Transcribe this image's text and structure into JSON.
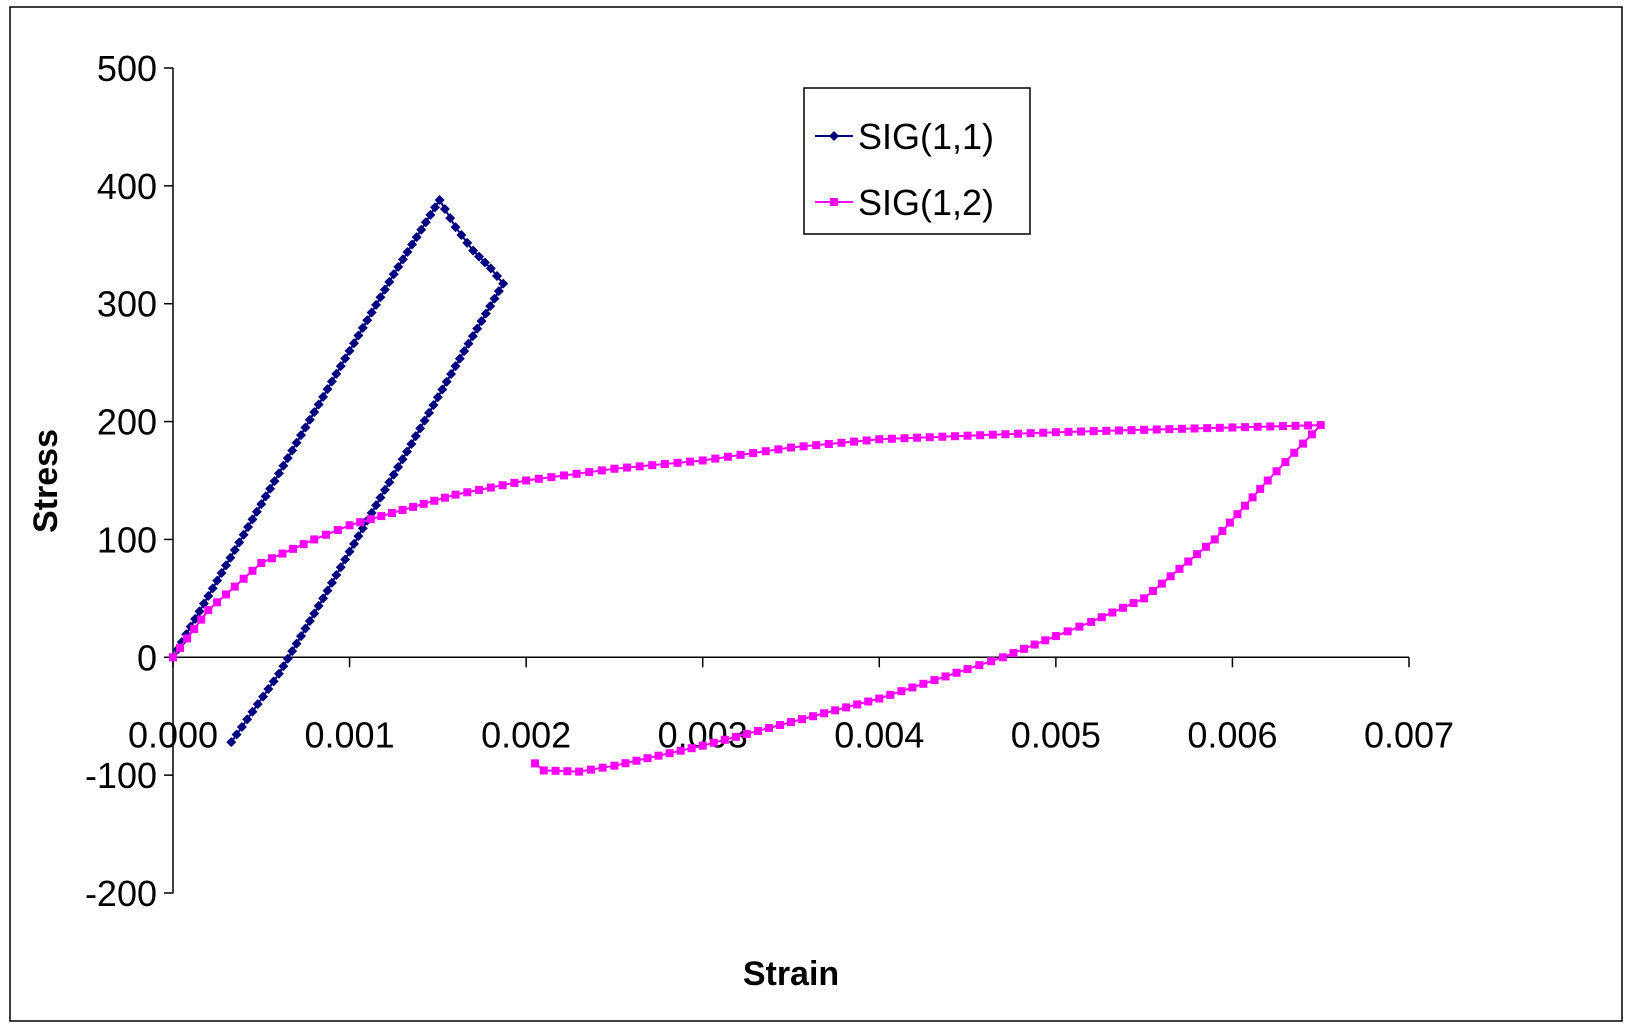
{
  "chart_data": {
    "type": "scatter",
    "xlabel": "Strain",
    "ylabel": "Stress",
    "xlim": [
      0,
      0.007
    ],
    "ylim": [
      -200,
      500
    ],
    "x_ticks": [
      "0.000",
      "0.001",
      "0.002",
      "0.003",
      "0.004",
      "0.005",
      "0.006",
      "0.007"
    ],
    "y_ticks": [
      "-200",
      "-100",
      "0",
      "100",
      "200",
      "300",
      "400",
      "500"
    ],
    "legend_position": "top-right",
    "grid": false,
    "series": [
      {
        "name": "SIG(1,1)",
        "color": "#000080",
        "marker": "diamond",
        "x": [
          0.0,
          0.00025,
          0.0005,
          0.00075,
          0.001,
          0.00125,
          0.00151,
          0.0016,
          0.0017,
          0.0018,
          0.00187,
          0.0016,
          0.00135,
          0.0011,
          0.00085,
          0.0006,
          0.00033
        ],
        "y": [
          0,
          65,
          130,
          195,
          260,
          325,
          388,
          365,
          345,
          330,
          317,
          247,
          181,
          116,
          50,
          -14,
          -72
        ]
      },
      {
        "name": "SIG(1,2)",
        "color": "#FF00FF",
        "marker": "square",
        "x": [
          0.0,
          0.0002,
          0.0005,
          0.0008,
          0.001,
          0.0013,
          0.0016,
          0.002,
          0.0025,
          0.003,
          0.0035,
          0.004,
          0.0045,
          0.005,
          0.0055,
          0.006,
          0.0065,
          0.0062,
          0.0059,
          0.0057,
          0.0055,
          0.0052,
          0.005,
          0.0047,
          0.0045,
          0.004,
          0.0035,
          0.003,
          0.0025,
          0.0023,
          0.0021,
          0.00205
        ],
        "y": [
          0,
          40,
          80,
          100,
          112,
          125,
          138,
          150,
          160,
          167,
          178,
          185,
          188,
          191,
          193,
          195,
          197,
          150,
          100,
          75,
          50,
          30,
          18,
          0,
          -10,
          -35,
          -55,
          -75,
          -92,
          -97,
          -96,
          -90
        ]
      }
    ]
  }
}
